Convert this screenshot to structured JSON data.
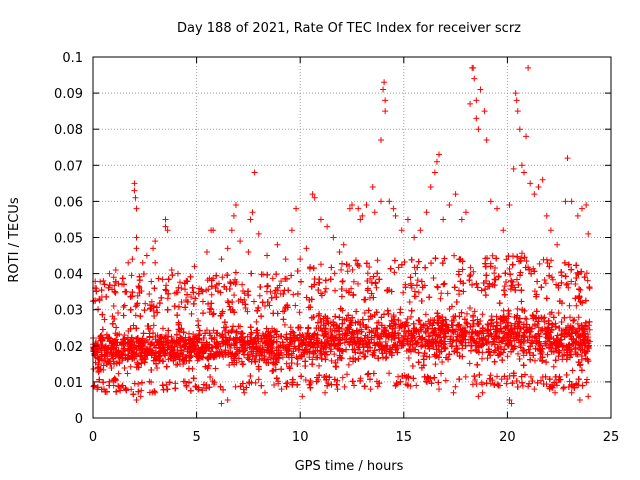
{
  "chart_data": {
    "type": "scatter",
    "title": "Day 188 of 2021, Rate Of TEC Index for receiver scrz",
    "xlabel": "GPS time / hours",
    "ylabel": "ROTI / TECUs",
    "xlim": [
      0,
      25
    ],
    "ylim": [
      0,
      0.1
    ],
    "xticks": [
      0,
      5,
      10,
      15,
      20,
      25
    ],
    "yticks": [
      0,
      0.01,
      0.02,
      0.03,
      0.04,
      0.05,
      0.06,
      0.07,
      0.08,
      0.09,
      0.1
    ],
    "xtick_labels": [
      "0",
      "5",
      "10",
      "15",
      "20",
      "25"
    ],
    "ytick_labels": [
      "0",
      "0.01",
      "0.02",
      "0.03",
      "0.04",
      "0.05",
      "0.06",
      "0.07",
      "0.08",
      "0.09",
      "0.1"
    ],
    "grid": true,
    "marker": "+",
    "marker_color": "#ff0000",
    "series": [
      {
        "points": [
          [
            0.1,
            0.036
          ],
          [
            0.3,
            0.033
          ],
          [
            0.5,
            0.038
          ],
          [
            0.8,
            0.04
          ],
          [
            1.0,
            0.039
          ],
          [
            1.1,
            0.041
          ],
          [
            1.4,
            0.037
          ],
          [
            1.7,
            0.043
          ],
          [
            1.9,
            0.044
          ],
          [
            2.1,
            0.047
          ],
          [
            2.1,
            0.05
          ],
          [
            2.0,
            0.065
          ],
          [
            2.0,
            0.063
          ],
          [
            2.05,
            0.061
          ],
          [
            2.1,
            0.058
          ],
          [
            2.4,
            0.043
          ],
          [
            2.6,
            0.045
          ],
          [
            2.9,
            0.047
          ],
          [
            3.0,
            0.049
          ],
          [
            3.0,
            0.043
          ],
          [
            3.5,
            0.053
          ],
          [
            3.5,
            0.055
          ],
          [
            3.6,
            0.052
          ],
          [
            3.8,
            0.041
          ],
          [
            4.1,
            0.04
          ],
          [
            4.5,
            0.038
          ],
          [
            4.9,
            0.042
          ],
          [
            5.5,
            0.046
          ],
          [
            5.7,
            0.052
          ],
          [
            5.8,
            0.052
          ],
          [
            6.2,
            0.044
          ],
          [
            6.5,
            0.047
          ],
          [
            6.7,
            0.052
          ],
          [
            6.8,
            0.056
          ],
          [
            6.9,
            0.059
          ],
          [
            7.1,
            0.049
          ],
          [
            7.5,
            0.046
          ],
          [
            7.6,
            0.055
          ],
          [
            7.7,
            0.057
          ],
          [
            7.8,
            0.068
          ],
          [
            8.0,
            0.051
          ],
          [
            8.4,
            0.045
          ],
          [
            8.9,
            0.048
          ],
          [
            9.3,
            0.044
          ],
          [
            9.6,
            0.052
          ],
          [
            9.8,
            0.058
          ],
          [
            10.0,
            0.044
          ],
          [
            10.3,
            0.047
          ],
          [
            10.6,
            0.062
          ],
          [
            10.7,
            0.061
          ],
          [
            11.0,
            0.055
          ],
          [
            11.3,
            0.053
          ],
          [
            11.6,
            0.05
          ],
          [
            11.9,
            0.046
          ],
          [
            12.1,
            0.048
          ],
          [
            12.4,
            0.058
          ],
          [
            12.5,
            0.059
          ],
          [
            12.8,
            0.058
          ],
          [
            12.9,
            0.055
          ],
          [
            13.0,
            0.056
          ],
          [
            13.2,
            0.059
          ],
          [
            13.5,
            0.064
          ],
          [
            13.6,
            0.057
          ],
          [
            13.9,
            0.06
          ],
          [
            13.9,
            0.077
          ],
          [
            14.0,
            0.091
          ],
          [
            14.05,
            0.093
          ],
          [
            14.1,
            0.088
          ],
          [
            14.1,
            0.085
          ],
          [
            14.3,
            0.06
          ],
          [
            14.5,
            0.058
          ],
          [
            14.6,
            0.056
          ],
          [
            14.9,
            0.052
          ],
          [
            15.2,
            0.055
          ],
          [
            15.5,
            0.05
          ],
          [
            15.8,
            0.052
          ],
          [
            16.1,
            0.057
          ],
          [
            16.3,
            0.064
          ],
          [
            16.5,
            0.068
          ],
          [
            16.6,
            0.071
          ],
          [
            16.7,
            0.073
          ],
          [
            16.9,
            0.055
          ],
          [
            17.2,
            0.059
          ],
          [
            17.5,
            0.062
          ],
          [
            17.8,
            0.055
          ],
          [
            18.0,
            0.057
          ],
          [
            18.2,
            0.087
          ],
          [
            18.3,
            0.097
          ],
          [
            18.35,
            0.097
          ],
          [
            18.4,
            0.094
          ],
          [
            18.5,
            0.088
          ],
          [
            18.5,
            0.083
          ],
          [
            18.6,
            0.08
          ],
          [
            18.7,
            0.091
          ],
          [
            18.9,
            0.085
          ],
          [
            19.0,
            0.077
          ],
          [
            19.2,
            0.06
          ],
          [
            19.5,
            0.058
          ],
          [
            19.8,
            0.052
          ],
          [
            20.1,
            0.059
          ],
          [
            20.3,
            0.069
          ],
          [
            20.4,
            0.09
          ],
          [
            20.45,
            0.088
          ],
          [
            20.5,
            0.085
          ],
          [
            20.6,
            0.08
          ],
          [
            20.7,
            0.07
          ],
          [
            20.8,
            0.068
          ],
          [
            20.9,
            0.078
          ],
          [
            21.0,
            0.097
          ],
          [
            21.1,
            0.065
          ],
          [
            21.3,
            0.062
          ],
          [
            21.5,
            0.064
          ],
          [
            21.7,
            0.066
          ],
          [
            21.9,
            0.056
          ],
          [
            22.1,
            0.052
          ],
          [
            22.4,
            0.048
          ],
          [
            22.8,
            0.06
          ],
          [
            22.9,
            0.072
          ],
          [
            23.1,
            0.06
          ],
          [
            23.4,
            0.056
          ],
          [
            23.6,
            0.058
          ],
          [
            23.8,
            0.059
          ],
          [
            23.9,
            0.051
          ],
          [
            0.2,
            0.008
          ],
          [
            1.0,
            0.009
          ],
          [
            2.1,
            0.005
          ],
          [
            2.3,
            0.006
          ],
          [
            3.0,
            0.007
          ],
          [
            3.6,
            0.008
          ],
          [
            4.5,
            0.009
          ],
          [
            5.1,
            0.008
          ],
          [
            6.2,
            0.004
          ],
          [
            6.5,
            0.005
          ],
          [
            7.3,
            0.007
          ],
          [
            8.3,
            0.007
          ],
          [
            9.1,
            0.008
          ],
          [
            10.1,
            0.006
          ],
          [
            11.2,
            0.007
          ],
          [
            11.8,
            0.008
          ],
          [
            12.6,
            0.009
          ],
          [
            13.4,
            0.008
          ],
          [
            14.6,
            0.009
          ],
          [
            15.6,
            0.009
          ],
          [
            16.7,
            0.008
          ],
          [
            17.4,
            0.007
          ],
          [
            18.6,
            0.006
          ],
          [
            18.8,
            0.007
          ],
          [
            20.1,
            0.005
          ],
          [
            20.2,
            0.004
          ],
          [
            21.3,
            0.008
          ],
          [
            22.3,
            0.007
          ],
          [
            23.1,
            0.007
          ],
          [
            23.5,
            0.005
          ],
          [
            23.9,
            0.006
          ]
        ],
        "band": {
          "description_free": true,
          "profile": [
            [
              0,
              0.0105,
              0.0265
            ],
            [
              1,
              0.011,
              0.027
            ],
            [
              2,
              0.0105,
              0.028
            ],
            [
              3,
              0.011,
              0.028
            ],
            [
              4,
              0.0115,
              0.0275
            ],
            [
              5,
              0.0115,
              0.0275
            ],
            [
              6,
              0.0115,
              0.028
            ],
            [
              7,
              0.012,
              0.0285
            ],
            [
              8,
              0.0115,
              0.028
            ],
            [
              9,
              0.0115,
              0.028
            ],
            [
              10,
              0.012,
              0.029
            ],
            [
              11,
              0.0125,
              0.031
            ],
            [
              12,
              0.0125,
              0.032
            ],
            [
              13,
              0.0125,
              0.0325
            ],
            [
              14,
              0.0125,
              0.033
            ],
            [
              15,
              0.0125,
              0.032
            ],
            [
              16,
              0.0125,
              0.032
            ],
            [
              17,
              0.0125,
              0.0325
            ],
            [
              18,
              0.0125,
              0.034
            ],
            [
              19,
              0.0125,
              0.033
            ],
            [
              20,
              0.0125,
              0.034
            ],
            [
              21,
              0.0125,
              0.0345
            ],
            [
              22,
              0.012,
              0.032
            ],
            [
              23,
              0.012,
              0.031
            ],
            [
              24,
              0.012,
              0.03
            ]
          ],
          "x_range": [
            0,
            24
          ],
          "count": 7000
        }
      }
    ]
  }
}
